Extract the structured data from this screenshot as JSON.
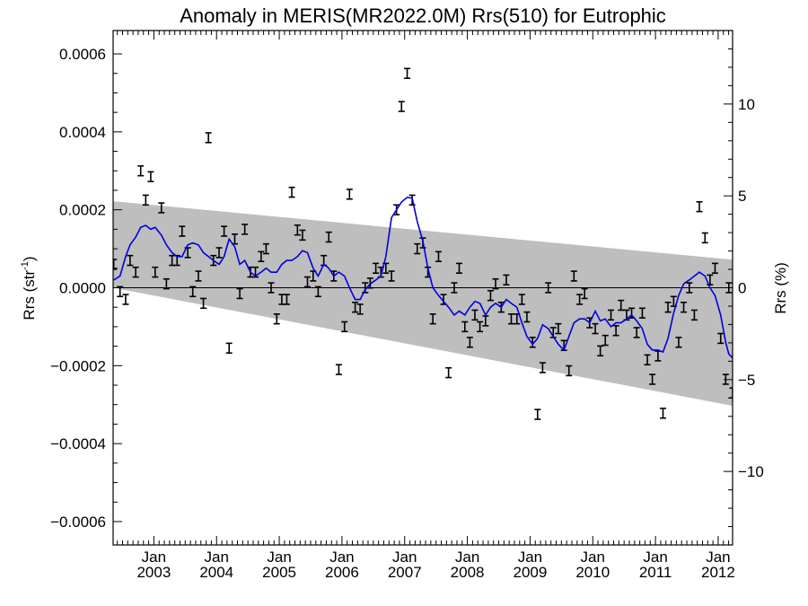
{
  "chart_data": {
    "type": "line",
    "title": "Anomaly in MERIS(MR2022.0M) Rrs(510) for Eutrophic",
    "ylabel_left": "Rrs (str",
    "ylabel_left_sup": "-1",
    "ylabel_left_close": ")",
    "ylabel_right": "Rrs (%)",
    "xlim": [
      2002.35,
      2012.23
    ],
    "ylim": [
      -0.00066,
      0.00066
    ],
    "y2lim": [
      -14.0,
      14.0
    ],
    "yticks_left": [
      {
        "value": 0.0006,
        "label": "0.0006"
      },
      {
        "value": 0.0004,
        "label": "0.0004"
      },
      {
        "value": 0.0002,
        "label": "0.0002"
      },
      {
        "value": 0.0,
        "label": "0.0000"
      },
      {
        "value": -0.0002,
        "label": "−0.0002"
      },
      {
        "value": -0.0004,
        "label": "−0.0004"
      },
      {
        "value": -0.0006,
        "label": "−0.0006"
      }
    ],
    "yticks_right": [
      {
        "value": 10,
        "label": "10"
      },
      {
        "value": 5,
        "label": "5"
      },
      {
        "value": 0,
        "label": "0"
      },
      {
        "value": -5,
        "label": "−5"
      },
      {
        "value": -10,
        "label": "−10"
      }
    ],
    "xticks": [
      {
        "value": 2003.0,
        "month": "Jan",
        "year": "2003"
      },
      {
        "value": 2004.0,
        "month": "Jan",
        "year": "2004"
      },
      {
        "value": 2005.0,
        "month": "Jan",
        "year": "2005"
      },
      {
        "value": 2006.0,
        "month": "Jan",
        "year": "2006"
      },
      {
        "value": 2007.0,
        "month": "Jan",
        "year": "2007"
      },
      {
        "value": 2008.0,
        "month": "Jan",
        "year": "2008"
      },
      {
        "value": 2009.0,
        "month": "Jan",
        "year": "2009"
      },
      {
        "value": 2010.0,
        "month": "Jan",
        "year": "2010"
      },
      {
        "value": 2011.0,
        "month": "Jan",
        "year": "2011"
      },
      {
        "value": 2012.0,
        "month": "Jan",
        "year": "2012"
      }
    ],
    "band": {
      "upper": [
        [
          2002.35,
          0.000222
        ],
        [
          2012.23,
          7.2e-05
        ]
      ],
      "lower": [
        [
          2002.35,
          0.0
        ],
        [
          2012.23,
          -0.000303
        ]
      ],
      "color": "#bebebe"
    },
    "zero_line": 0.0,
    "series": [
      {
        "type": "errorbar",
        "color": "#000000",
        "err": 1.25e-05,
        "points": [
          [
            2002.36,
            6e-05
          ],
          [
            2002.46,
            -1e-05
          ],
          [
            2002.55,
            -3e-05
          ],
          [
            2002.62,
            7e-05
          ],
          [
            2002.71,
            4e-05
          ],
          [
            2002.79,
            0.0003
          ],
          [
            2002.87,
            0.000225
          ],
          [
            2002.95,
            0.000285
          ],
          [
            2003.02,
            4e-05
          ],
          [
            2003.12,
            0.000205
          ],
          [
            2003.2,
            1e-05
          ],
          [
            2003.29,
            7e-05
          ],
          [
            2003.37,
            7e-05
          ],
          [
            2003.45,
            0.000145
          ],
          [
            2003.54,
            9e-05
          ],
          [
            2003.62,
            -1e-05
          ],
          [
            2003.71,
            3e-05
          ],
          [
            2003.79,
            -4e-05
          ],
          [
            2003.87,
            0.000385
          ],
          [
            2003.95,
            7e-05
          ],
          [
            2004.04,
            9e-05
          ],
          [
            2004.12,
            0.000145
          ],
          [
            2004.2,
            -0.000155
          ],
          [
            2004.29,
            0.000125
          ],
          [
            2004.37,
            -1.5e-05
          ],
          [
            2004.45,
            0.00015
          ],
          [
            2004.54,
            4e-05
          ],
          [
            2004.62,
            4e-05
          ],
          [
            2004.71,
            8e-05
          ],
          [
            2004.79,
            0.0001
          ],
          [
            2004.87,
            0.0
          ],
          [
            2004.96,
            -8e-05
          ],
          [
            2005.04,
            -3e-05
          ],
          [
            2005.12,
            -3e-05
          ],
          [
            2005.2,
            0.000245
          ],
          [
            2005.29,
            0.000148
          ],
          [
            2005.37,
            0.000135
          ],
          [
            2005.45,
            1.5e-05
          ],
          [
            2005.54,
            3e-05
          ],
          [
            2005.62,
            -1e-05
          ],
          [
            2005.71,
            7e-05
          ],
          [
            2005.79,
            0.00013
          ],
          [
            2005.87,
            3e-05
          ],
          [
            2005.95,
            -0.00021
          ],
          [
            2006.04,
            -0.0001
          ],
          [
            2006.12,
            0.00024
          ],
          [
            2006.21,
            -5e-05
          ],
          [
            2006.29,
            -5.5e-05
          ],
          [
            2006.37,
            0.0
          ],
          [
            2006.45,
            1.2e-05
          ],
          [
            2006.54,
            5e-05
          ],
          [
            2006.62,
            4e-05
          ],
          [
            2006.7,
            5e-05
          ],
          [
            2006.79,
            3e-05
          ],
          [
            2006.87,
            0.0002
          ],
          [
            2006.95,
            0.000465
          ],
          [
            2007.04,
            0.00055
          ],
          [
            2007.12,
            0.000225
          ],
          [
            2007.2,
            0.0001
          ],
          [
            2007.29,
            0.000115
          ],
          [
            2007.37,
            4e-05
          ],
          [
            2007.45,
            -8e-05
          ],
          [
            2007.54,
            8e-05
          ],
          [
            2007.62,
            -3e-05
          ],
          [
            2007.7,
            -0.000218
          ],
          [
            2007.79,
            0.0
          ],
          [
            2007.87,
            5e-05
          ],
          [
            2007.96,
            -0.0001
          ],
          [
            2008.04,
            -0.00014
          ],
          [
            2008.12,
            -7e-05
          ],
          [
            2008.2,
            -0.0001
          ],
          [
            2008.29,
            -8.5e-05
          ],
          [
            2008.37,
            -2e-05
          ],
          [
            2008.45,
            1e-05
          ],
          [
            2008.54,
            -5e-05
          ],
          [
            2008.62,
            2e-05
          ],
          [
            2008.7,
            -8e-05
          ],
          [
            2008.79,
            -8e-05
          ],
          [
            2008.87,
            -3e-05
          ],
          [
            2008.95,
            -7.5e-05
          ],
          [
            2009.04,
            -0.00014
          ],
          [
            2009.12,
            -0.000325
          ],
          [
            2009.2,
            -0.000205
          ],
          [
            2009.29,
            -0.0
          ],
          [
            2009.37,
            -0.000115
          ],
          [
            2009.45,
            -0.000105
          ],
          [
            2009.54,
            -0.000148
          ],
          [
            2009.62,
            -0.000213
          ],
          [
            2009.7,
            3e-05
          ],
          [
            2009.79,
            -3e-05
          ],
          [
            2009.87,
            -1.5e-05
          ],
          [
            2009.95,
            -9e-05
          ],
          [
            2010.04,
            -0.000105
          ],
          [
            2010.12,
            -0.000162
          ],
          [
            2010.2,
            -0.000135
          ],
          [
            2010.29,
            -7e-05
          ],
          [
            2010.37,
            -0.00011
          ],
          [
            2010.45,
            -4.5e-05
          ],
          [
            2010.54,
            -7e-05
          ],
          [
            2010.62,
            -6.5e-05
          ],
          [
            2010.7,
            -0.000115
          ],
          [
            2010.79,
            -6.5e-05
          ],
          [
            2010.87,
            -0.000185
          ],
          [
            2010.95,
            -0.000235
          ],
          [
            2011.04,
            -0.000175
          ],
          [
            2011.12,
            -0.000322
          ],
          [
            2011.2,
            -5e-05
          ],
          [
            2011.29,
            -3.5e-05
          ],
          [
            2011.37,
            -0.00014
          ],
          [
            2011.45,
            -5e-05
          ],
          [
            2011.54,
            0.0
          ],
          [
            2011.62,
            -7e-05
          ],
          [
            2011.7,
            0.000208
          ],
          [
            2011.79,
            0.000128
          ],
          [
            2011.87,
            2e-05
          ],
          [
            2011.95,
            5e-05
          ],
          [
            2012.04,
            -0.00013
          ],
          [
            2012.12,
            -0.000235
          ],
          [
            2012.17,
            0.0
          ],
          [
            2012.23,
            -0.00027
          ]
        ]
      },
      {
        "type": "line",
        "color": "#0000dd",
        "points": [
          [
            2002.36,
            2e-05
          ],
          [
            2002.46,
            3e-05
          ],
          [
            2002.55,
            8e-05
          ],
          [
            2002.62,
            0.00011
          ],
          [
            2002.71,
            0.00013
          ],
          [
            2002.79,
            0.000155
          ],
          [
            2002.87,
            0.00016
          ],
          [
            2002.95,
            0.00015
          ],
          [
            2003.02,
            0.000155
          ],
          [
            2003.12,
            0.000135
          ],
          [
            2003.2,
            0.00011
          ],
          [
            2003.29,
            9e-05
          ],
          [
            2003.37,
            8e-05
          ],
          [
            2003.45,
            8e-05
          ],
          [
            2003.54,
            0.00011
          ],
          [
            2003.62,
            0.000115
          ],
          [
            2003.71,
            0.00011
          ],
          [
            2003.79,
            9e-05
          ],
          [
            2003.87,
            8e-05
          ],
          [
            2003.95,
            7e-05
          ],
          [
            2004.04,
            6e-05
          ],
          [
            2004.12,
            8e-05
          ],
          [
            2004.2,
            0.000125
          ],
          [
            2004.29,
            0.000105
          ],
          [
            2004.37,
            6e-05
          ],
          [
            2004.45,
            7e-05
          ],
          [
            2004.54,
            4e-05
          ],
          [
            2004.62,
            3e-05
          ],
          [
            2004.71,
            4e-05
          ],
          [
            2004.79,
            5e-05
          ],
          [
            2004.87,
            4e-05
          ],
          [
            2004.96,
            4e-05
          ],
          [
            2005.04,
            6e-05
          ],
          [
            2005.12,
            7e-05
          ],
          [
            2005.2,
            7e-05
          ],
          [
            2005.29,
            8e-05
          ],
          [
            2005.37,
            9.5e-05
          ],
          [
            2005.45,
            9e-05
          ],
          [
            2005.54,
            5e-05
          ],
          [
            2005.62,
            3e-05
          ],
          [
            2005.71,
            6e-05
          ],
          [
            2005.79,
            5e-05
          ],
          [
            2005.87,
            3e-05
          ],
          [
            2005.95,
            4e-05
          ],
          [
            2006.04,
            3e-05
          ],
          [
            2006.12,
            -0.0
          ],
          [
            2006.21,
            -3e-05
          ],
          [
            2006.29,
            -3e-05
          ],
          [
            2006.37,
            -5e-06
          ],
          [
            2006.45,
            1e-05
          ],
          [
            2006.54,
            2e-05
          ],
          [
            2006.62,
            3e-05
          ],
          [
            2006.7,
            8e-05
          ],
          [
            2006.79,
            0.00018
          ],
          [
            2006.87,
            0.0002
          ],
          [
            2006.95,
            0.00022
          ],
          [
            2007.04,
            0.000232
          ],
          [
            2007.12,
            0.00023
          ],
          [
            2007.2,
            0.00017
          ],
          [
            2007.29,
            0.00012
          ],
          [
            2007.37,
            5e-05
          ],
          [
            2007.45,
            0.0
          ],
          [
            2007.54,
            -2e-05
          ],
          [
            2007.62,
            -3.5e-05
          ],
          [
            2007.7,
            -5e-05
          ],
          [
            2007.79,
            -7e-05
          ],
          [
            2007.87,
            -6e-05
          ],
          [
            2007.96,
            -7e-05
          ],
          [
            2008.04,
            -5e-05
          ],
          [
            2008.12,
            -3.5e-05
          ],
          [
            2008.2,
            -4e-05
          ],
          [
            2008.29,
            -7e-05
          ],
          [
            2008.37,
            -5e-05
          ],
          [
            2008.45,
            -4e-05
          ],
          [
            2008.54,
            -5e-05
          ],
          [
            2008.62,
            -3e-05
          ],
          [
            2008.7,
            -4e-05
          ],
          [
            2008.79,
            -5e-05
          ],
          [
            2008.87,
            -9e-05
          ],
          [
            2008.95,
            -0.000125
          ],
          [
            2009.04,
            -0.000145
          ],
          [
            2009.12,
            -0.00013
          ],
          [
            2009.2,
            -9.5e-05
          ],
          [
            2009.29,
            -0.000105
          ],
          [
            2009.37,
            -0.000125
          ],
          [
            2009.45,
            -0.000145
          ],
          [
            2009.54,
            -0.00016
          ],
          [
            2009.62,
            -0.000125
          ],
          [
            2009.7,
            -9e-05
          ],
          [
            2009.79,
            -8e-05
          ],
          [
            2009.87,
            -8e-05
          ],
          [
            2009.95,
            -9e-05
          ],
          [
            2010.04,
            -6e-05
          ],
          [
            2010.12,
            -8.5e-05
          ],
          [
            2010.2,
            -8e-05
          ],
          [
            2010.29,
            -0.0001
          ],
          [
            2010.37,
            -9e-05
          ],
          [
            2010.45,
            -9e-05
          ],
          [
            2010.54,
            -8e-05
          ],
          [
            2010.62,
            -7e-05
          ],
          [
            2010.7,
            -8.5e-05
          ],
          [
            2010.79,
            -0.000105
          ],
          [
            2010.87,
            -0.000145
          ],
          [
            2010.95,
            -0.00016
          ],
          [
            2011.04,
            -0.00016
          ],
          [
            2011.12,
            -0.000165
          ],
          [
            2011.2,
            -0.00013
          ],
          [
            2011.29,
            -6.5e-05
          ],
          [
            2011.37,
            -2e-05
          ],
          [
            2011.45,
            1e-05
          ],
          [
            2011.54,
            2e-05
          ],
          [
            2011.62,
            3e-05
          ],
          [
            2011.7,
            4e-05
          ],
          [
            2011.79,
            3e-05
          ],
          [
            2011.87,
            0.0
          ],
          [
            2011.95,
            -2e-05
          ],
          [
            2012.04,
            -7e-05
          ],
          [
            2012.12,
            -0.00014
          ],
          [
            2012.17,
            -0.00017
          ],
          [
            2012.23,
            -0.00018
          ]
        ]
      }
    ]
  }
}
